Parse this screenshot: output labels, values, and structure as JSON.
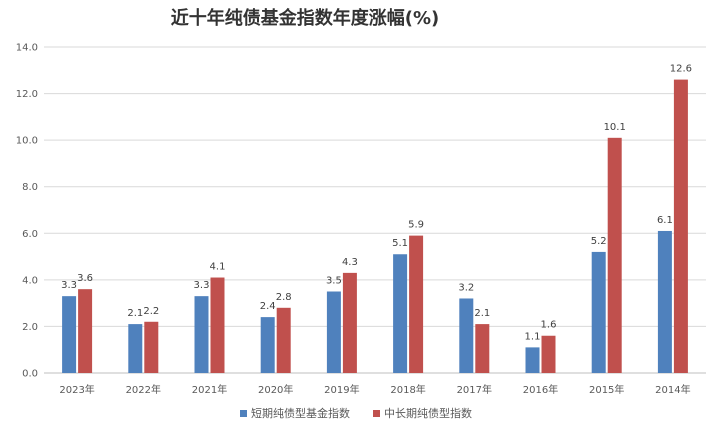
{
  "chart_data": {
    "type": "bar",
    "title": "近十年纯债基金指数年度涨幅(%)",
    "categories": [
      "2023年",
      "2022年",
      "2021年",
      "2020年",
      "2019年",
      "2018年",
      "2017年",
      "2016年",
      "2015年",
      "2014年"
    ],
    "series": [
      {
        "name": "短期纯债型基金指数",
        "color": "#4F81BD",
        "values": [
          3.3,
          2.1,
          3.3,
          2.4,
          3.5,
          5.1,
          3.2,
          1.1,
          5.2,
          6.1
        ]
      },
      {
        "name": "中长期纯债型指数",
        "color": "#C0504D",
        "values": [
          3.6,
          2.2,
          4.1,
          2.8,
          4.3,
          5.9,
          2.1,
          1.6,
          10.1,
          12.6
        ]
      }
    ],
    "ylim": [
      0,
      14
    ],
    "yticks": [
      "0.0",
      "2.0",
      "4.0",
      "6.0",
      "8.0",
      "10.0",
      "12.0",
      "14.0"
    ],
    "grid": true,
    "legend": "bottom"
  }
}
